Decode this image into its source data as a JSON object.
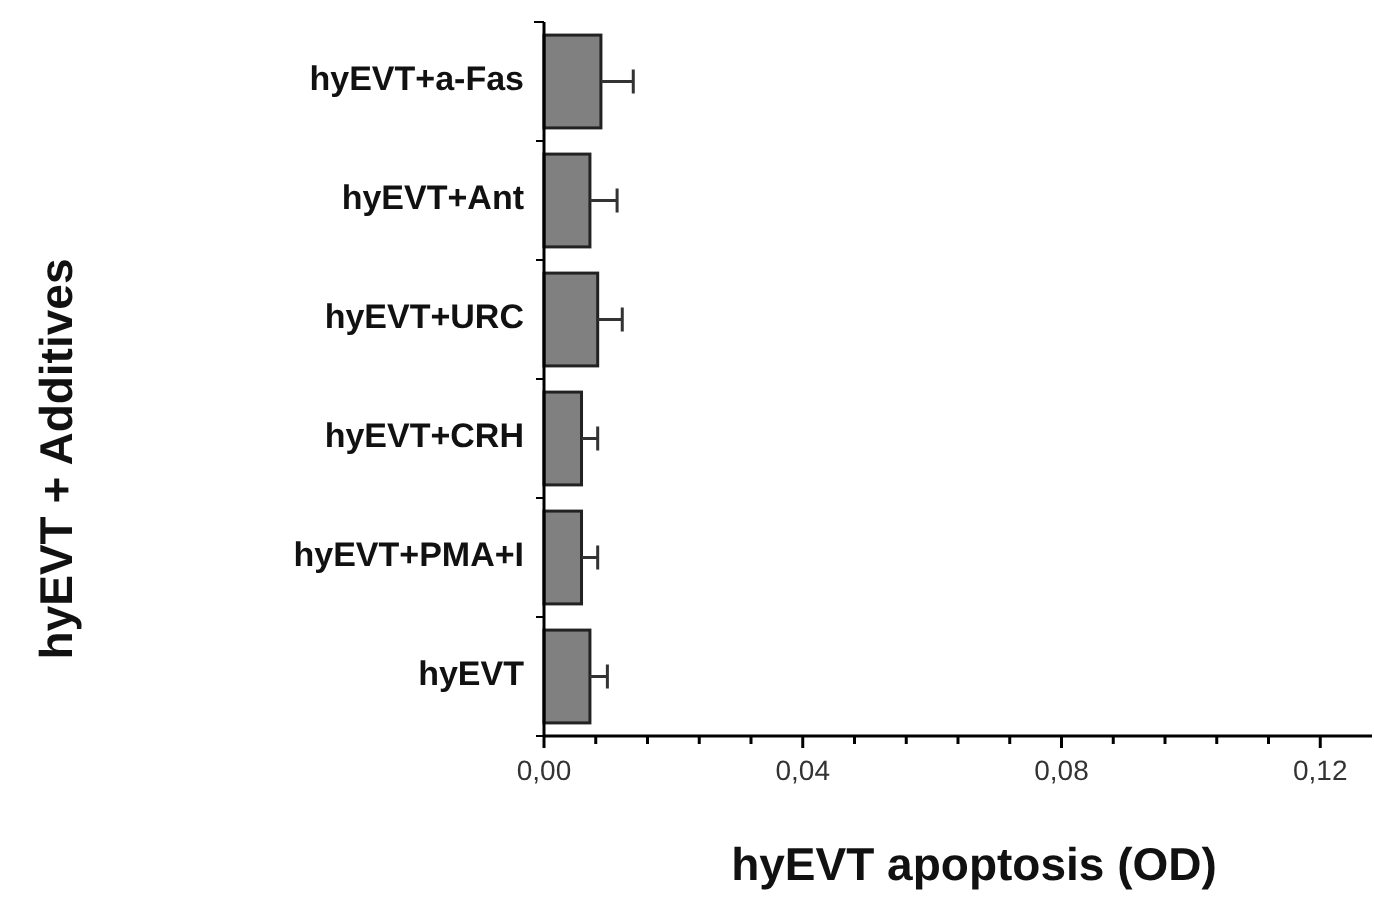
{
  "chart_data": {
    "type": "bar",
    "orientation": "horizontal",
    "xlabel": "hyEVT apoptosis (OD)",
    "ylabel": "hyEVT + Additives",
    "categories": [
      "hyEVT+a-Fas",
      "hyEVT+Ant",
      "hyEVT+URC",
      "hyEVT+CRH",
      "hyEVT+PMA+I",
      "hyEVT"
    ],
    "values": [
      0.0088,
      0.0071,
      0.0083,
      0.0058,
      0.0058,
      0.0071
    ],
    "errors": [
      [
        0.0088,
        0.0138
      ],
      [
        0.0071,
        0.0113
      ],
      [
        0.0083,
        0.0121
      ],
      [
        0.0058,
        0.0083
      ],
      [
        0.0058,
        0.0083
      ],
      [
        0.0071,
        0.0098
      ]
    ],
    "color": "#808080",
    "xlim": [
      0,
      0.128
    ],
    "xticks": [
      {
        "value": 0,
        "label": "0,00"
      },
      {
        "value": 0.008,
        "label": null
      },
      {
        "value": 0.016,
        "label": null
      },
      {
        "value": 0.024,
        "label": null
      },
      {
        "value": 0.032,
        "label": null
      },
      {
        "value": 0.04,
        "label": "0,04"
      },
      {
        "value": 0.048,
        "label": null
      },
      {
        "value": 0.056,
        "label": null
      },
      {
        "value": 0.064,
        "label": null
      },
      {
        "value": 0.072,
        "label": null
      },
      {
        "value": 0.08,
        "label": "0,08"
      },
      {
        "value": 0.088,
        "label": null
      },
      {
        "value": 0.096,
        "label": null
      },
      {
        "value": 0.104,
        "label": null
      },
      {
        "value": 0.112,
        "label": null
      },
      {
        "value": 0.12,
        "label": "0,12"
      }
    ],
    "grid": false
  }
}
